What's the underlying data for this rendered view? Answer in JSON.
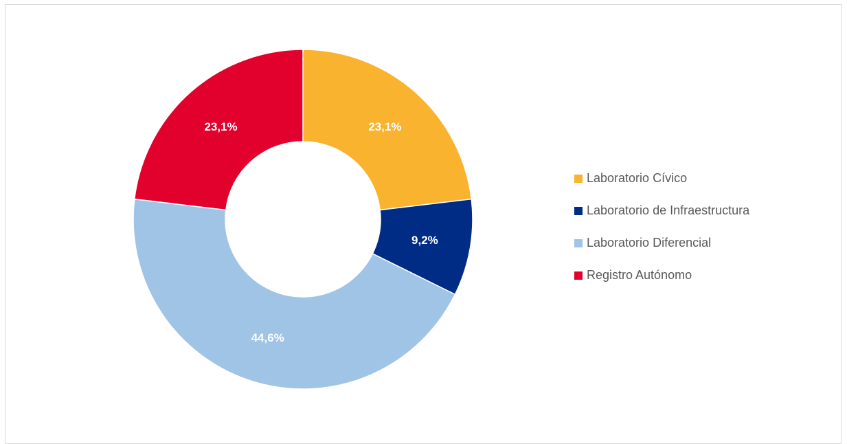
{
  "chart_data": {
    "type": "pie",
    "title": "",
    "donut": true,
    "start_angle_deg": 0,
    "direction": "clockwise",
    "legend_position": "right",
    "categories": [
      "Laboratorio Cívico",
      "Laboratorio de Infraestructura",
      "Laboratorio Diferencial",
      "Registro Autónomo"
    ],
    "values": [
      23.1,
      9.2,
      44.6,
      23.1
    ],
    "value_labels": [
      "23,1%",
      "9,2%",
      "44,6%",
      "23,1%"
    ],
    "colors": [
      "#F9B32F",
      "#002C86",
      "#A0C4E6",
      "#E2002D"
    ]
  }
}
